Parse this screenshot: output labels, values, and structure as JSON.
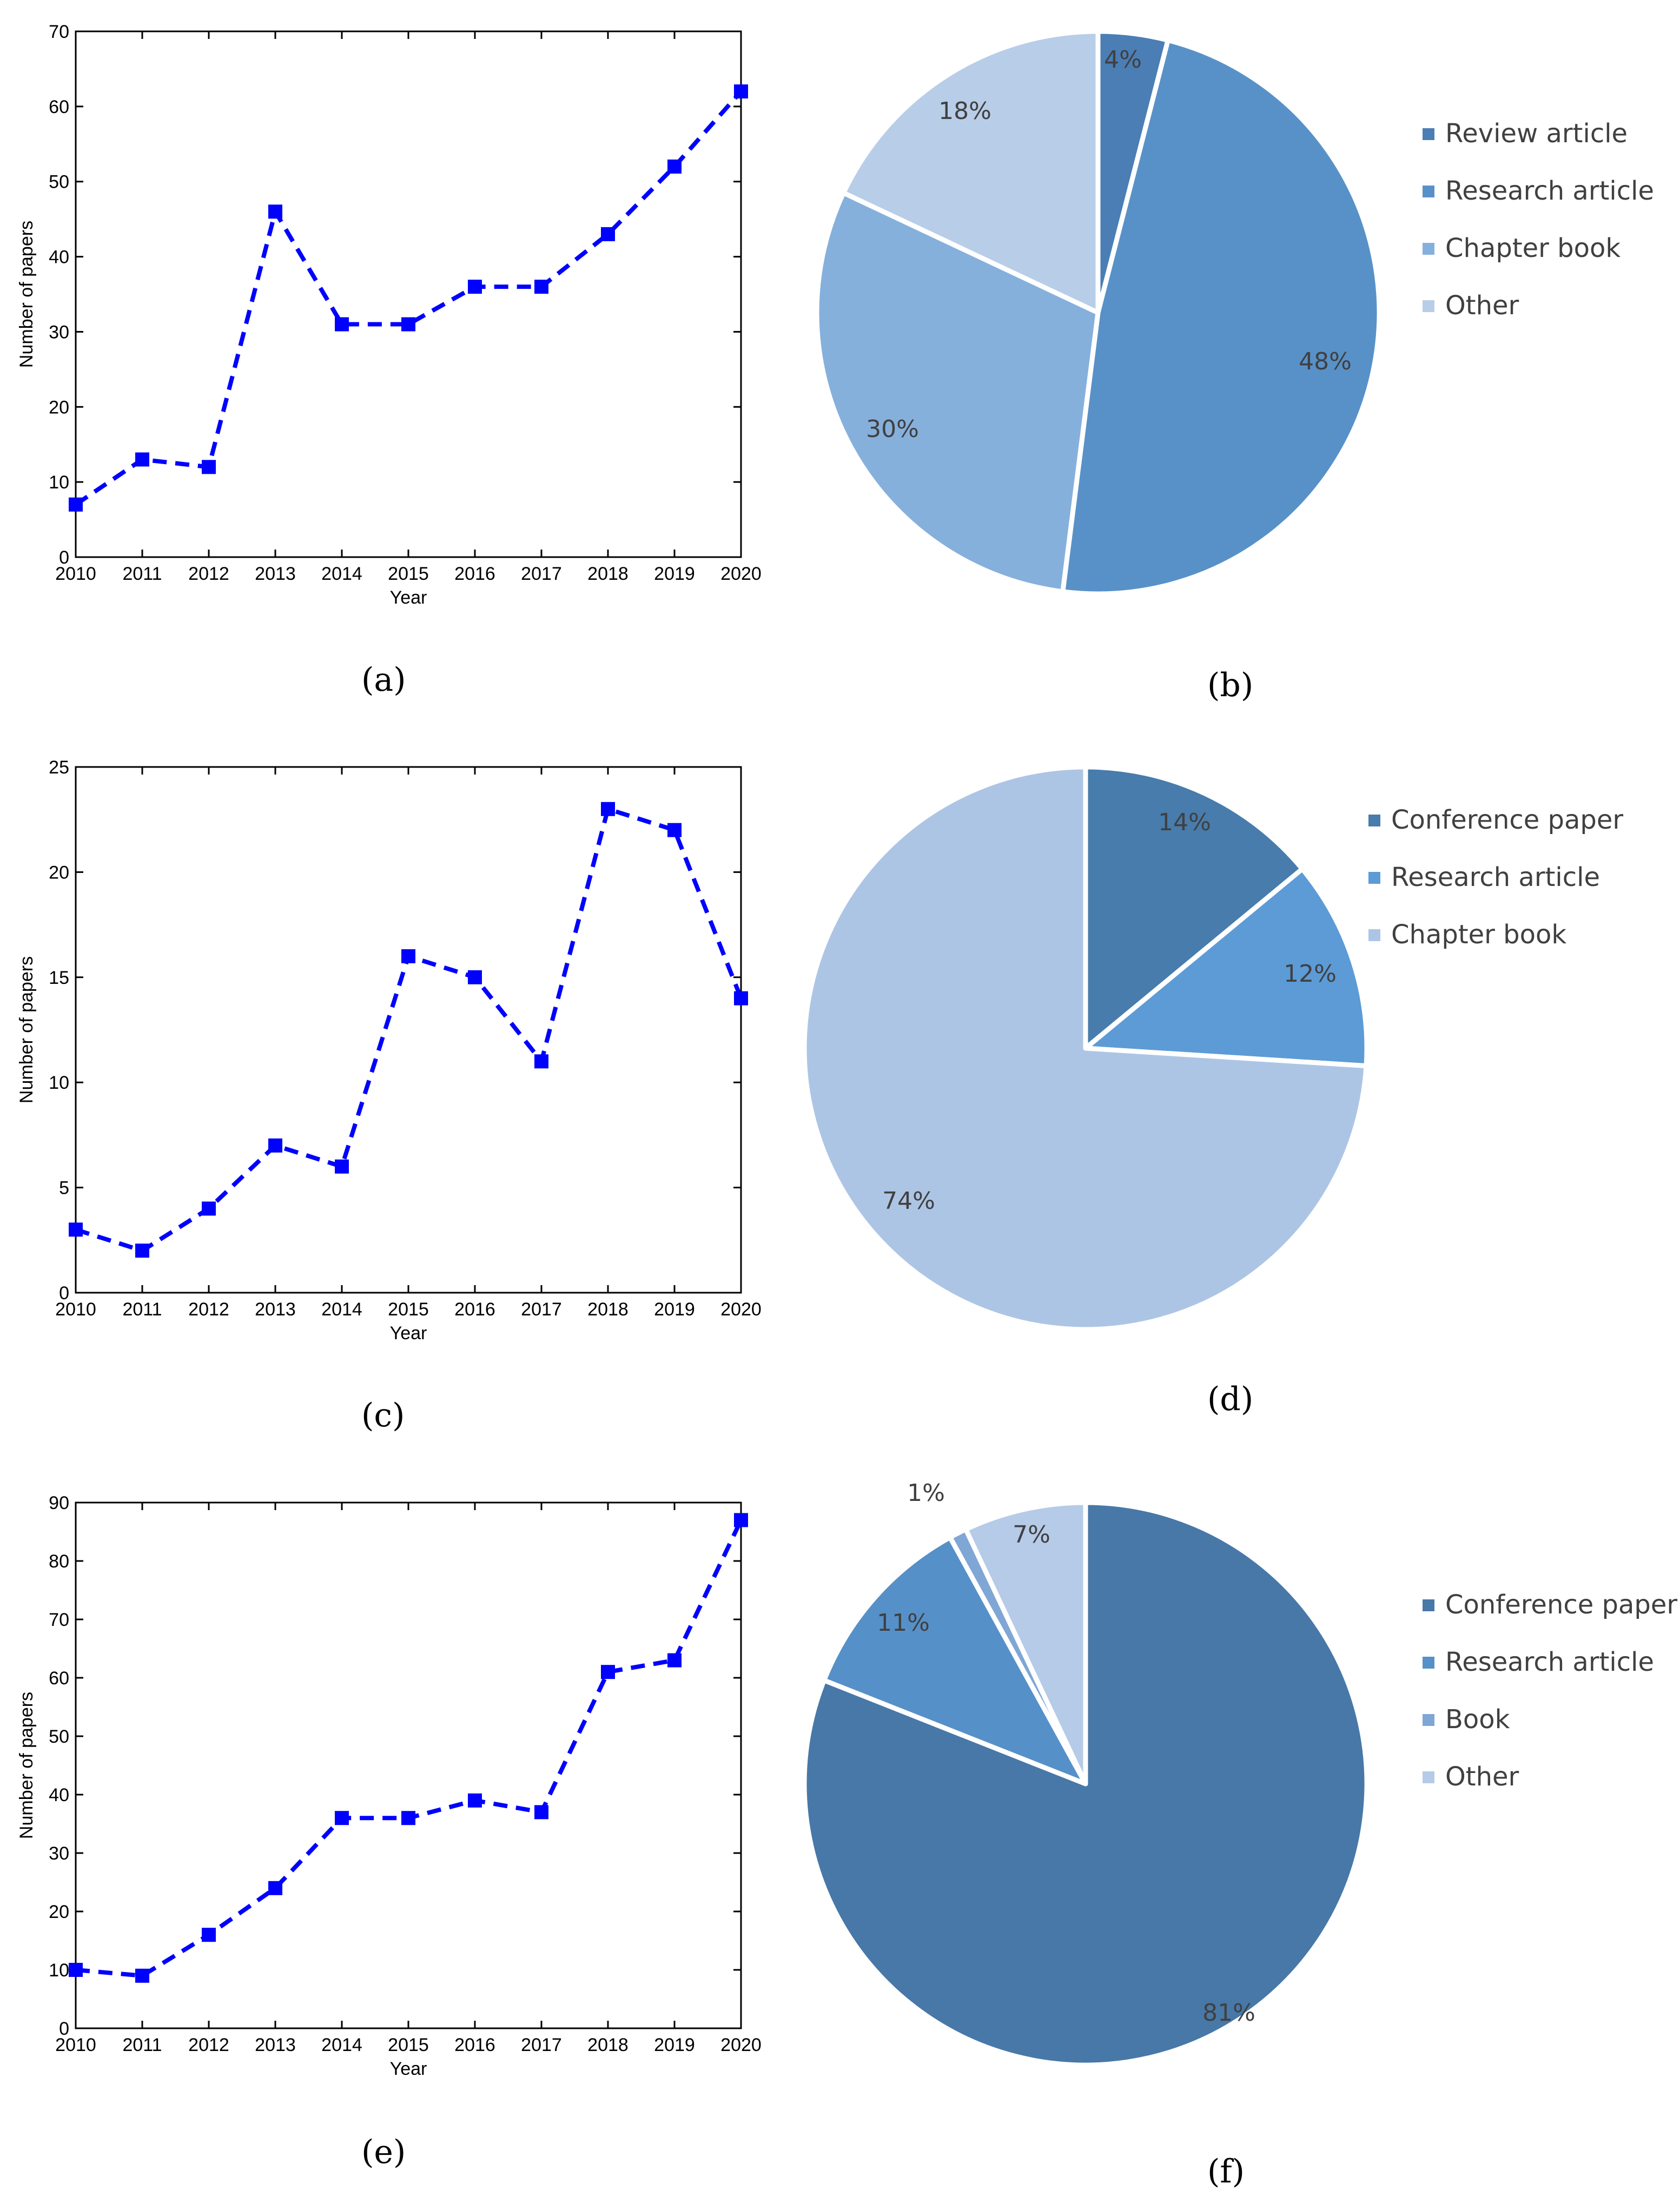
{
  "chart_data": [
    {
      "id": "a",
      "type": "line",
      "x": [
        "2010",
        "2011",
        "2012",
        "2013",
        "2014",
        "2015",
        "2016",
        "2017",
        "2018",
        "2019",
        "2020"
      ],
      "series": [
        {
          "name": "Number of papers",
          "values": [
            7,
            13,
            12,
            46,
            31,
            31,
            36,
            36,
            43,
            52,
            62
          ]
        }
      ],
      "ylim": [
        0,
        70
      ],
      "yticks": [
        0,
        10,
        20,
        30,
        40,
        50,
        60,
        70
      ],
      "xlabel": "Year",
      "ylabel": "Number of papers",
      "color": "#0000ff"
    },
    {
      "id": "b",
      "type": "pie",
      "slices": [
        {
          "label": "Review article",
          "value": 4,
          "text": "4%",
          "color": "#4a7eb5"
        },
        {
          "label": "Research article",
          "value": 48,
          "text": "48%",
          "color": "#5891c8"
        },
        {
          "label": "Chapter book",
          "value": 30,
          "text": "30%",
          "color": "#86b0dc"
        },
        {
          "label": "Other",
          "value": 18,
          "text": "18%",
          "color": "#b8cde8"
        }
      ]
    },
    {
      "id": "c",
      "type": "line",
      "x": [
        "2010",
        "2011",
        "2012",
        "2013",
        "2014",
        "2015",
        "2016",
        "2017",
        "2018",
        "2019",
        "2020"
      ],
      "series": [
        {
          "name": "Number of papers",
          "values": [
            3,
            2,
            4,
            7,
            6,
            16,
            15,
            11,
            23,
            22,
            14
          ]
        }
      ],
      "ylim": [
        0,
        25
      ],
      "yticks": [
        0,
        5,
        10,
        15,
        20,
        25
      ],
      "xlabel": "Year",
      "ylabel": "Number of papers",
      "color": "#0000ff"
    },
    {
      "id": "d",
      "type": "pie",
      "slices": [
        {
          "label": "Conference paper",
          "value": 14,
          "text": "14%",
          "color": "#477cad"
        },
        {
          "label": "Research article",
          "value": 12,
          "text": "12%",
          "color": "#5c9bd6"
        },
        {
          "label": "Chapter book",
          "value": 74,
          "text": "74%",
          "color": "#adc5e5"
        }
      ]
    },
    {
      "id": "e",
      "type": "line",
      "x": [
        "2010",
        "2011",
        "2012",
        "2013",
        "2014",
        "2015",
        "2016",
        "2017",
        "2018",
        "2019",
        "2020"
      ],
      "series": [
        {
          "name": "Number of papers",
          "values": [
            10,
            9,
            16,
            24,
            36,
            36,
            39,
            37,
            61,
            63,
            87
          ]
        }
      ],
      "ylim": [
        0,
        90
      ],
      "yticks": [
        0,
        10,
        20,
        30,
        40,
        50,
        60,
        70,
        80,
        90
      ],
      "xlabel": "Year",
      "ylabel": "Number of papers",
      "color": "#0000ff"
    },
    {
      "id": "f",
      "type": "pie",
      "slices": [
        {
          "label": "Conference paper",
          "value": 81,
          "text": "81%",
          "color": "#4778a8"
        },
        {
          "label": "Research article",
          "value": 11,
          "text": "11%",
          "color": "#5690c8"
        },
        {
          "label": "Book",
          "value": 1,
          "text": "1%",
          "color": "#7fa6d5"
        },
        {
          "label": "Other",
          "value": 7,
          "text": "7%",
          "color": "#b5cbe8"
        }
      ]
    }
  ],
  "captions": [
    "(a)",
    "(b)",
    "(c)",
    "(d)",
    "(e)",
    "(f)"
  ]
}
